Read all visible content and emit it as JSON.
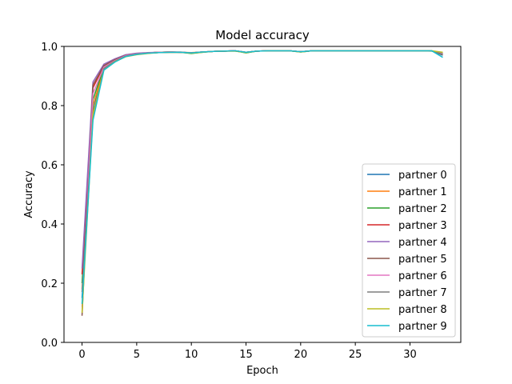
{
  "chart_data": {
    "type": "line",
    "title": "Model accuracy",
    "xlabel": "Epoch",
    "ylabel": "Accuracy",
    "xlim": [
      -1.65,
      34.65
    ],
    "ylim": [
      0.0,
      1.0
    ],
    "x_ticks": [
      0,
      5,
      10,
      15,
      20,
      25,
      30
    ],
    "y_ticks": [
      0.0,
      0.2,
      0.4,
      0.6,
      0.8,
      1.0
    ],
    "y_tick_labels": [
      "0.0",
      "0.2",
      "0.4",
      "0.6",
      "0.8",
      "1.0"
    ],
    "grid": false,
    "legend_position": "lower-right",
    "x": [
      0,
      1,
      2,
      3,
      4,
      5,
      6,
      7,
      8,
      9,
      10,
      11,
      12,
      13,
      14,
      15,
      16,
      17,
      18,
      19,
      20,
      21,
      22,
      23,
      24,
      25,
      26,
      27,
      28,
      29,
      30,
      31,
      32,
      33
    ],
    "series": [
      {
        "name": "partner 0",
        "color": "#1f77b4",
        "values": [
          0.15,
          0.78,
          0.93,
          0.955,
          0.97,
          0.975,
          0.978,
          0.98,
          0.981,
          0.98,
          0.978,
          0.981,
          0.983,
          0.984,
          0.985,
          0.98,
          0.984,
          0.985,
          0.985,
          0.985,
          0.982,
          0.985,
          0.985,
          0.985,
          0.985,
          0.985,
          0.985,
          0.985,
          0.985,
          0.985,
          0.985,
          0.985,
          0.985,
          0.97
        ]
      },
      {
        "name": "partner 1",
        "color": "#ff7f0e",
        "values": [
          0.18,
          0.8,
          0.925,
          0.95,
          0.968,
          0.974,
          0.978,
          0.98,
          0.98,
          0.98,
          0.979,
          0.981,
          0.983,
          0.984,
          0.984,
          0.98,
          0.984,
          0.985,
          0.985,
          0.985,
          0.982,
          0.985,
          0.985,
          0.985,
          0.985,
          0.985,
          0.985,
          0.985,
          0.985,
          0.985,
          0.985,
          0.985,
          0.985,
          0.975
        ]
      },
      {
        "name": "partner 2",
        "color": "#2ca02c",
        "values": [
          0.2,
          0.82,
          0.93,
          0.952,
          0.968,
          0.974,
          0.977,
          0.979,
          0.98,
          0.98,
          0.976,
          0.98,
          0.983,
          0.984,
          0.985,
          0.978,
          0.984,
          0.985,
          0.985,
          0.985,
          0.981,
          0.985,
          0.985,
          0.985,
          0.985,
          0.985,
          0.985,
          0.985,
          0.985,
          0.985,
          0.985,
          0.985,
          0.984,
          0.978
        ]
      },
      {
        "name": "partner 3",
        "color": "#d62728",
        "values": [
          0.23,
          0.86,
          0.935,
          0.955,
          0.97,
          0.976,
          0.978,
          0.98,
          0.981,
          0.98,
          0.978,
          0.981,
          0.983,
          0.984,
          0.985,
          0.98,
          0.984,
          0.985,
          0.985,
          0.985,
          0.982,
          0.985,
          0.985,
          0.985,
          0.985,
          0.985,
          0.985,
          0.985,
          0.985,
          0.985,
          0.985,
          0.985,
          0.985,
          0.972
        ]
      },
      {
        "name": "partner 4",
        "color": "#9467bd",
        "values": [
          0.25,
          0.88,
          0.94,
          0.958,
          0.972,
          0.977,
          0.979,
          0.98,
          0.981,
          0.981,
          0.978,
          0.981,
          0.983,
          0.984,
          0.985,
          0.98,
          0.984,
          0.985,
          0.985,
          0.985,
          0.982,
          0.985,
          0.985,
          0.985,
          0.985,
          0.985,
          0.985,
          0.985,
          0.985,
          0.985,
          0.985,
          0.985,
          0.985,
          0.974
        ]
      },
      {
        "name": "partner 5",
        "color": "#8c564b",
        "values": [
          0.09,
          0.87,
          0.935,
          0.955,
          0.97,
          0.975,
          0.978,
          0.98,
          0.981,
          0.98,
          0.978,
          0.981,
          0.983,
          0.984,
          0.985,
          0.98,
          0.984,
          0.985,
          0.985,
          0.985,
          0.982,
          0.985,
          0.985,
          0.985,
          0.985,
          0.985,
          0.985,
          0.985,
          0.985,
          0.985,
          0.985,
          0.985,
          0.985,
          0.972
        ]
      },
      {
        "name": "partner 6",
        "color": "#e377c2",
        "values": [
          0.12,
          0.84,
          0.93,
          0.952,
          0.969,
          0.975,
          0.978,
          0.98,
          0.981,
          0.98,
          0.978,
          0.981,
          0.983,
          0.984,
          0.985,
          0.98,
          0.984,
          0.985,
          0.985,
          0.985,
          0.982,
          0.985,
          0.985,
          0.985,
          0.985,
          0.985,
          0.985,
          0.985,
          0.985,
          0.985,
          0.985,
          0.985,
          0.985,
          0.975
        ]
      },
      {
        "name": "partner 7",
        "color": "#7f7f7f",
        "values": [
          0.17,
          0.76,
          0.925,
          0.95,
          0.967,
          0.974,
          0.977,
          0.979,
          0.98,
          0.98,
          0.978,
          0.981,
          0.983,
          0.984,
          0.985,
          0.98,
          0.984,
          0.985,
          0.985,
          0.985,
          0.982,
          0.985,
          0.985,
          0.985,
          0.985,
          0.985,
          0.985,
          0.985,
          0.985,
          0.985,
          0.985,
          0.985,
          0.985,
          0.973
        ]
      },
      {
        "name": "partner 8",
        "color": "#bcbd22",
        "values": [
          0.1,
          0.77,
          0.92,
          0.948,
          0.965,
          0.972,
          0.976,
          0.979,
          0.98,
          0.98,
          0.977,
          0.98,
          0.983,
          0.984,
          0.984,
          0.979,
          0.984,
          0.985,
          0.985,
          0.985,
          0.981,
          0.985,
          0.985,
          0.985,
          0.985,
          0.985,
          0.985,
          0.985,
          0.985,
          0.985,
          0.985,
          0.985,
          0.985,
          0.98
        ]
      },
      {
        "name": "partner 9",
        "color": "#17becf",
        "values": [
          0.13,
          0.75,
          0.92,
          0.947,
          0.966,
          0.973,
          0.977,
          0.979,
          0.98,
          0.98,
          0.978,
          0.981,
          0.983,
          0.984,
          0.985,
          0.98,
          0.984,
          0.985,
          0.985,
          0.985,
          0.982,
          0.985,
          0.985,
          0.985,
          0.985,
          0.985,
          0.985,
          0.985,
          0.985,
          0.985,
          0.985,
          0.985,
          0.985,
          0.963
        ]
      }
    ]
  }
}
